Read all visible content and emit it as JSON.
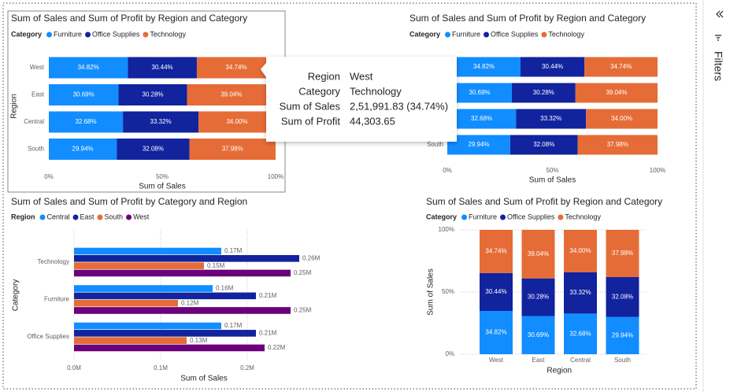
{
  "chart_data": [
    {
      "type": "bar",
      "orientation": "horizontal",
      "stacked": true,
      "grid": false,
      "title": "Sum of Sales and Sum of Profit by Region and Category",
      "legend_title": "Category",
      "x_label": "Sum of Sales",
      "y_label": "Region",
      "categories": [
        "West",
        "East",
        "Central",
        "South"
      ],
      "series": [
        {
          "name": "Furniture",
          "color": "#118DFF",
          "values": [
            34.82,
            30.69,
            32.68,
            29.94
          ],
          "value_labels": [
            "34.82%",
            "30.69%",
            "32.68%",
            "29.94%"
          ]
        },
        {
          "name": "Office Supplies",
          "color": "#12239E",
          "values": [
            30.44,
            30.28,
            33.32,
            32.08
          ],
          "value_labels": [
            "30.44%",
            "30.28%",
            "33.32%",
            "32.08%"
          ]
        },
        {
          "name": "Technology",
          "color": "#E66C37",
          "values": [
            34.74,
            39.04,
            34.0,
            37.98
          ],
          "value_labels": [
            "34.74%",
            "39.04%",
            "34.00%",
            "37.98%"
          ]
        }
      ],
      "xlim": [
        0,
        100
      ],
      "xticks": [
        {
          "value": 0,
          "label": "0%"
        },
        {
          "value": 50,
          "label": "50%"
        },
        {
          "value": 100,
          "label": "100%"
        }
      ]
    },
    {
      "type": "bar",
      "orientation": "horizontal",
      "stacked": true,
      "grid": false,
      "title": "Sum of Sales and Sum of Profit by Region and Category",
      "legend_title": "Category",
      "x_label": "Sum of Sales",
      "categories": [
        "West",
        "East",
        "Central",
        "South"
      ],
      "series": [
        {
          "name": "Furniture",
          "color": "#118DFF",
          "values": [
            34.82,
            30.69,
            32.68,
            29.94
          ],
          "value_labels": [
            "34.82%",
            "30.69%",
            "32.68%",
            "29.94%"
          ]
        },
        {
          "name": "Office Supplies",
          "color": "#12239E",
          "values": [
            30.44,
            30.28,
            33.32,
            32.08
          ],
          "value_labels": [
            "30.44%",
            "30.28%",
            "33.32%",
            "32.08%"
          ]
        },
        {
          "name": "Technology",
          "color": "#E66C37",
          "values": [
            34.74,
            39.04,
            34.0,
            37.98
          ],
          "value_labels": [
            "34.74%",
            "39.04%",
            "34.00%",
            "37.98%"
          ]
        }
      ],
      "xlim": [
        0,
        100
      ],
      "xticks": [
        {
          "value": 0,
          "label": "0%"
        },
        {
          "value": 50,
          "label": "50%"
        },
        {
          "value": 100,
          "label": "100%"
        }
      ]
    },
    {
      "type": "bar",
      "orientation": "horizontal",
      "stacked": false,
      "grid": true,
      "title": "Sum of Sales and Sum of Profit by Category and Region",
      "legend_title": "Region",
      "x_label": "Sum of Sales",
      "y_label": "Category",
      "categories": [
        "Technology",
        "Furniture",
        "Office Supplies"
      ],
      "series": [
        {
          "name": "Central",
          "color": "#118DFF",
          "values": [
            0.17,
            0.16,
            0.17
          ],
          "value_labels": [
            "0.17M",
            "0.16M",
            "0.17M"
          ]
        },
        {
          "name": "East",
          "color": "#12239E",
          "values": [
            0.26,
            0.21,
            0.21
          ],
          "value_labels": [
            "0.26M",
            "0.21M",
            "0.21M"
          ]
        },
        {
          "name": "South",
          "color": "#E66C37",
          "values": [
            0.15,
            0.12,
            0.13
          ],
          "value_labels": [
            "0.15M",
            "0.12M",
            "0.13M"
          ]
        },
        {
          "name": "West",
          "color": "#6B007B",
          "values": [
            0.25,
            0.25,
            0.22
          ],
          "value_labels": [
            "0.25M",
            "0.25M",
            "0.22M"
          ]
        }
      ],
      "xlim": [
        0,
        0.3
      ],
      "xticks": [
        {
          "value": 0,
          "label": "0.0M"
        },
        {
          "value": 0.1,
          "label": "0.1M"
        },
        {
          "value": 0.2,
          "label": "0.2M"
        }
      ]
    },
    {
      "type": "bar",
      "orientation": "vertical",
      "stacked": true,
      "grid": true,
      "title": "Sum of Sales and Sum of Profit by Region and Category",
      "legend_title": "Category",
      "x_label": "Region",
      "y_label": "Sum of Sales",
      "categories": [
        "West",
        "East",
        "Central",
        "South"
      ],
      "series": [
        {
          "name": "Furniture",
          "color": "#118DFF",
          "values": [
            34.82,
            30.69,
            32.68,
            29.94
          ],
          "value_labels": [
            "34.82%",
            "30.69%",
            "32.68%",
            "29.94%"
          ]
        },
        {
          "name": "Office Supplies",
          "color": "#12239E",
          "values": [
            30.44,
            30.28,
            33.32,
            32.08
          ],
          "value_labels": [
            "30.44%",
            "30.28%",
            "33.32%",
            "32.08%"
          ]
        },
        {
          "name": "Technology",
          "color": "#E66C37",
          "values": [
            34.74,
            39.04,
            34.0,
            37.98
          ],
          "value_labels": [
            "34.74%",
            "39.04%",
            "34.00%",
            "37.98%"
          ]
        }
      ],
      "ylim": [
        0,
        100
      ],
      "yticks": [
        {
          "value": 0,
          "label": "0%"
        },
        {
          "value": 50,
          "label": "50%"
        },
        {
          "value": 100,
          "label": "100%"
        }
      ]
    }
  ],
  "tooltip": {
    "rows": [
      {
        "label": "Region",
        "value": "West"
      },
      {
        "label": "Category",
        "value": "Technology"
      },
      {
        "label": "Sum of Sales",
        "value": "2,51,991.83 (34.74%)"
      },
      {
        "label": "Sum of Profit",
        "value": "44,303.65"
      }
    ]
  },
  "filters_pane": {
    "title": "Filters"
  }
}
